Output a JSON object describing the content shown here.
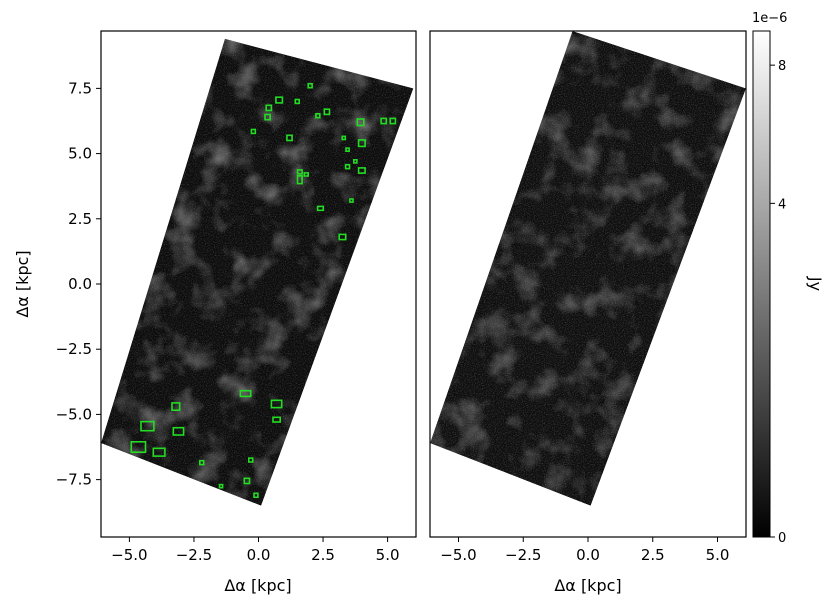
{
  "chart_data": [
    {
      "type": "heatmap",
      "panel": "left",
      "xlabel": "Δα [kpc]",
      "ylabel": "Δα [kpc]",
      "xlim": [
        -6.1,
        6.1
      ],
      "ylim": [
        -9.7,
        9.7
      ],
      "xticks": [
        -5.0,
        -2.5,
        0.0,
        2.5,
        5.0
      ],
      "xtick_labels": [
        "−5.0",
        "−2.5",
        "0.0",
        "2.5",
        "5.0"
      ],
      "yticks": [
        7.5,
        5.0,
        2.5,
        0.0,
        -2.5,
        -5.0,
        -7.5
      ],
      "ytick_labels": [
        "7.5",
        "5.0",
        "2.5",
        "0.0",
        "−2.5",
        "−5.0",
        "−7.5"
      ],
      "footprint_corners": [
        [
          -1.3,
          9.4
        ],
        [
          6.0,
          7.5
        ],
        [
          0.1,
          -8.5
        ],
        [
          -6.1,
          -6.1
        ]
      ],
      "regions": [
        {
          "x": 2.0,
          "y": 7.6,
          "w": 0.15,
          "h": 0.15
        },
        {
          "x": 0.8,
          "y": 7.05,
          "w": 0.25,
          "h": 0.22
        },
        {
          "x": 1.5,
          "y": 7.0,
          "w": 0.15,
          "h": 0.15
        },
        {
          "x": 0.4,
          "y": 6.75,
          "w": 0.2,
          "h": 0.2
        },
        {
          "x": 2.65,
          "y": 6.6,
          "w": 0.2,
          "h": 0.2
        },
        {
          "x": 0.35,
          "y": 6.4,
          "w": 0.2,
          "h": 0.2
        },
        {
          "x": 2.3,
          "y": 6.45,
          "w": 0.15,
          "h": 0.15
        },
        {
          "x": 3.95,
          "y": 6.2,
          "w": 0.25,
          "h": 0.25
        },
        {
          "x": 4.85,
          "y": 6.25,
          "w": 0.2,
          "h": 0.2
        },
        {
          "x": 5.2,
          "y": 6.25,
          "w": 0.2,
          "h": 0.2
        },
        {
          "x": -0.2,
          "y": 5.85,
          "w": 0.15,
          "h": 0.15
        },
        {
          "x": 1.2,
          "y": 5.6,
          "w": 0.2,
          "h": 0.2
        },
        {
          "x": 3.3,
          "y": 5.6,
          "w": 0.12,
          "h": 0.12
        },
        {
          "x": 4.0,
          "y": 5.4,
          "w": 0.25,
          "h": 0.25
        },
        {
          "x": 3.45,
          "y": 5.15,
          "w": 0.12,
          "h": 0.12
        },
        {
          "x": 3.75,
          "y": 4.7,
          "w": 0.12,
          "h": 0.12
        },
        {
          "x": 3.45,
          "y": 4.5,
          "w": 0.15,
          "h": 0.15
        },
        {
          "x": 4.0,
          "y": 4.35,
          "w": 0.25,
          "h": 0.2
        },
        {
          "x": 1.6,
          "y": 4.3,
          "w": 0.18,
          "h": 0.15
        },
        {
          "x": 1.85,
          "y": 4.2,
          "w": 0.15,
          "h": 0.12
        },
        {
          "x": 1.6,
          "y": 4.0,
          "w": 0.18,
          "h": 0.3
        },
        {
          "x": 3.6,
          "y": 3.2,
          "w": 0.12,
          "h": 0.12
        },
        {
          "x": 2.4,
          "y": 2.9,
          "w": 0.22,
          "h": 0.15
        },
        {
          "x": 3.25,
          "y": 1.8,
          "w": 0.25,
          "h": 0.2
        },
        {
          "x": -0.5,
          "y": -4.2,
          "w": 0.4,
          "h": 0.22
        },
        {
          "x": 0.7,
          "y": -4.6,
          "w": 0.4,
          "h": 0.28
        },
        {
          "x": -3.2,
          "y": -4.7,
          "w": 0.3,
          "h": 0.28
        },
        {
          "x": 0.7,
          "y": -5.2,
          "w": 0.28,
          "h": 0.18
        },
        {
          "x": -4.3,
          "y": -5.45,
          "w": 0.5,
          "h": 0.35
        },
        {
          "x": -3.1,
          "y": -5.65,
          "w": 0.4,
          "h": 0.28
        },
        {
          "x": -4.65,
          "y": -6.25,
          "w": 0.55,
          "h": 0.4
        },
        {
          "x": -3.85,
          "y": -6.45,
          "w": 0.45,
          "h": 0.3
        },
        {
          "x": -0.3,
          "y": -6.75,
          "w": 0.15,
          "h": 0.15
        },
        {
          "x": -2.2,
          "y": -6.85,
          "w": 0.15,
          "h": 0.15
        },
        {
          "x": -0.45,
          "y": -7.55,
          "w": 0.2,
          "h": 0.2
        },
        {
          "x": -1.45,
          "y": -7.75,
          "w": 0.12,
          "h": 0.12
        },
        {
          "x": -0.1,
          "y": -8.1,
          "w": 0.15,
          "h": 0.15
        }
      ],
      "region_color": "#22dd22"
    },
    {
      "type": "heatmap",
      "panel": "right",
      "xlabel": "Δα [kpc]",
      "xlim": [
        -6.1,
        6.1
      ],
      "ylim": [
        -9.7,
        9.7
      ],
      "xticks": [
        -5.0,
        -2.5,
        0.0,
        2.5,
        5.0
      ],
      "xtick_labels": [
        "−5.0",
        "−2.5",
        "0.0",
        "2.5",
        "5.0"
      ],
      "footprint_corners": [
        [
          -0.6,
          9.7
        ],
        [
          6.1,
          7.5
        ],
        [
          0.1,
          -8.5
        ],
        [
          -6.1,
          -6.1
        ]
      ]
    }
  ],
  "colorbar": {
    "label": "Jy",
    "offset_text": "1e−6",
    "ticks": [
      0,
      4,
      8
    ],
    "tick_labels": [
      "0",
      "4",
      "8"
    ],
    "scale": "sqrt",
    "vmin": 0,
    "vmax": 9.2,
    "colormap": "gray"
  }
}
